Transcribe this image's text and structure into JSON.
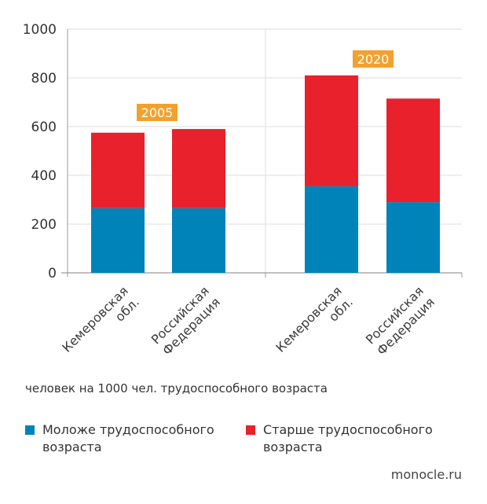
{
  "chart_data": {
    "type": "bar",
    "stacked": true,
    "groups": [
      {
        "label": "2005",
        "categories": [
          "Кемеровская обл.",
          "Российская Федерация"
        ]
      },
      {
        "label": "2020",
        "categories": [
          "Кемеровская обл.",
          "Российская Федерация"
        ]
      }
    ],
    "series": [
      {
        "name": "Моложе трудоспособного возраста",
        "color": "#0083b8",
        "values": [
          265,
          265,
          355,
          290
        ]
      },
      {
        "name": "Старше трудоспособного возраста",
        "color": "#e8212c",
        "values": [
          310,
          325,
          455,
          425
        ]
      }
    ],
    "ylim": [
      0,
      1000
    ],
    "yticks": [
      0,
      200,
      400,
      600,
      800,
      1000
    ],
    "grid": true,
    "year_badge_color": "#f2a12e"
  },
  "category_labels": [
    [
      "Кемеровская",
      "обл."
    ],
    [
      "Российская",
      "Федерация"
    ],
    [
      "Кемеровская",
      "обл."
    ],
    [
      "Российская",
      "Федерация"
    ]
  ],
  "unit_note": "человек на 1000 чел. трудоспособного возраста",
  "legend": [
    {
      "label": "Моложе трудоспособного возраста",
      "color": "#0083b8"
    },
    {
      "label": "Старше трудоспособного возраста",
      "color": "#e8212c"
    }
  ],
  "source": "monocle.ru"
}
